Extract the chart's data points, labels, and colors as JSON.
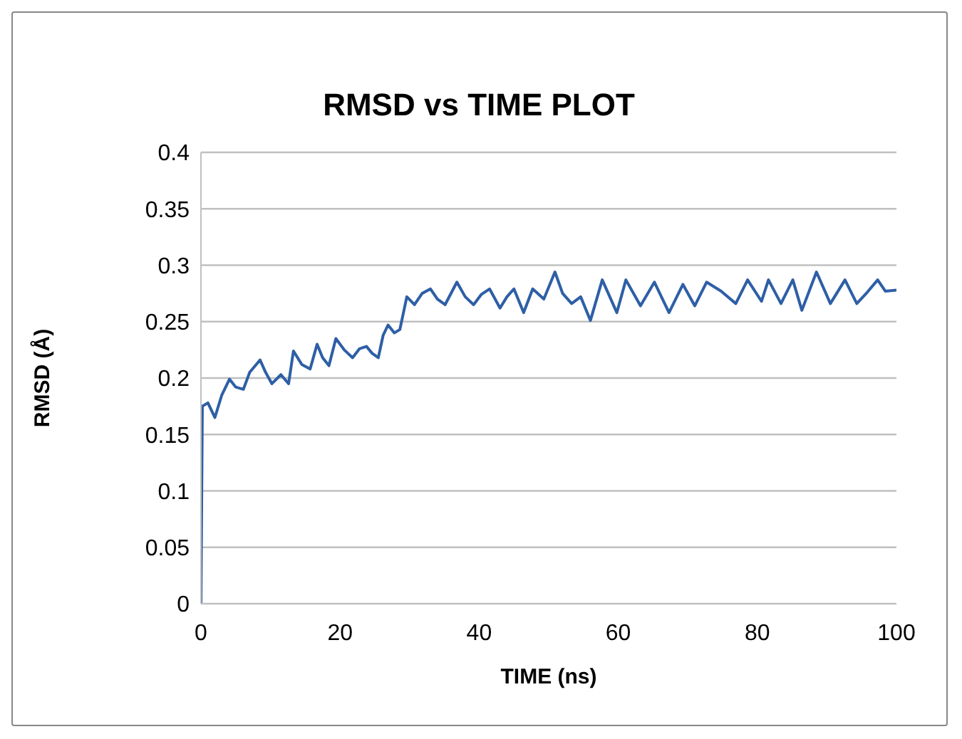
{
  "chart_data": {
    "type": "line",
    "title": "RMSD vs TIME PLOT",
    "xlabel": "TIME (ns)",
    "ylabel": "RMSD (Å)",
    "x": [
      0,
      0.2,
      1,
      2,
      3,
      4.1,
      5,
      6.1,
      7,
      8.5,
      9.3,
      10.2,
      11.5,
      12.6,
      13.3,
      14.5,
      15.7,
      16.7,
      17.5,
      18.4,
      19.4,
      20.6,
      21.8,
      22.8,
      23.8,
      24.6,
      25.5,
      26.2,
      26.9,
      27.8,
      28.6,
      29.6,
      30.7,
      31.8,
      33,
      34,
      35.1,
      36.8,
      38,
      39.2,
      40.3,
      41.5,
      43,
      44,
      45,
      46.4,
      47.7,
      49.3,
      50.9,
      52,
      53.3,
      54.6,
      56,
      57.7,
      59.8,
      61.1,
      63.2,
      65.2,
      67.3,
      69.3,
      71,
      72.7,
      74.8,
      76.9,
      78.6,
      80.6,
      81.6,
      83.4,
      85.1,
      86.4,
      88.5,
      90.5,
      92.6,
      94.3,
      95.8,
      97.3,
      98.4,
      100
    ],
    "series": [
      {
        "color": "#2e5fa6",
        "values": [
          0,
          0.175,
          0.178,
          0.165,
          0.185,
          0.199,
          0.192,
          0.19,
          0.205,
          0.216,
          0.205,
          0.195,
          0.203,
          0.195,
          0.224,
          0.212,
          0.208,
          0.23,
          0.218,
          0.211,
          0.235,
          0.225,
          0.218,
          0.226,
          0.228,
          0.222,
          0.218,
          0.238,
          0.247,
          0.24,
          0.243,
          0.272,
          0.265,
          0.275,
          0.279,
          0.27,
          0.265,
          0.285,
          0.272,
          0.265,
          0.274,
          0.279,
          0.262,
          0.272,
          0.279,
          0.258,
          0.279,
          0.27,
          0.294,
          0.275,
          0.266,
          0.272,
          0.251,
          0.287,
          0.258,
          0.287,
          0.264,
          0.285,
          0.258,
          0.283,
          0.264,
          0.285,
          0.277,
          0.266,
          0.287,
          0.268,
          0.287,
          0.266,
          0.287,
          0.26,
          0.294,
          0.266,
          0.287,
          0.266,
          0.276,
          0.287,
          0.277,
          0.278
        ]
      }
    ],
    "xlim": [
      0,
      100
    ],
    "xticks": [
      0,
      20,
      40,
      60,
      80,
      100
    ],
    "ylim": [
      0,
      0.4
    ],
    "yticks": [
      0,
      0.05,
      0.1,
      0.15,
      0.2,
      0.25,
      0.3,
      0.35,
      0.4
    ],
    "grid": "y",
    "legend": false,
    "marker": "none",
    "line_style": "solid"
  }
}
